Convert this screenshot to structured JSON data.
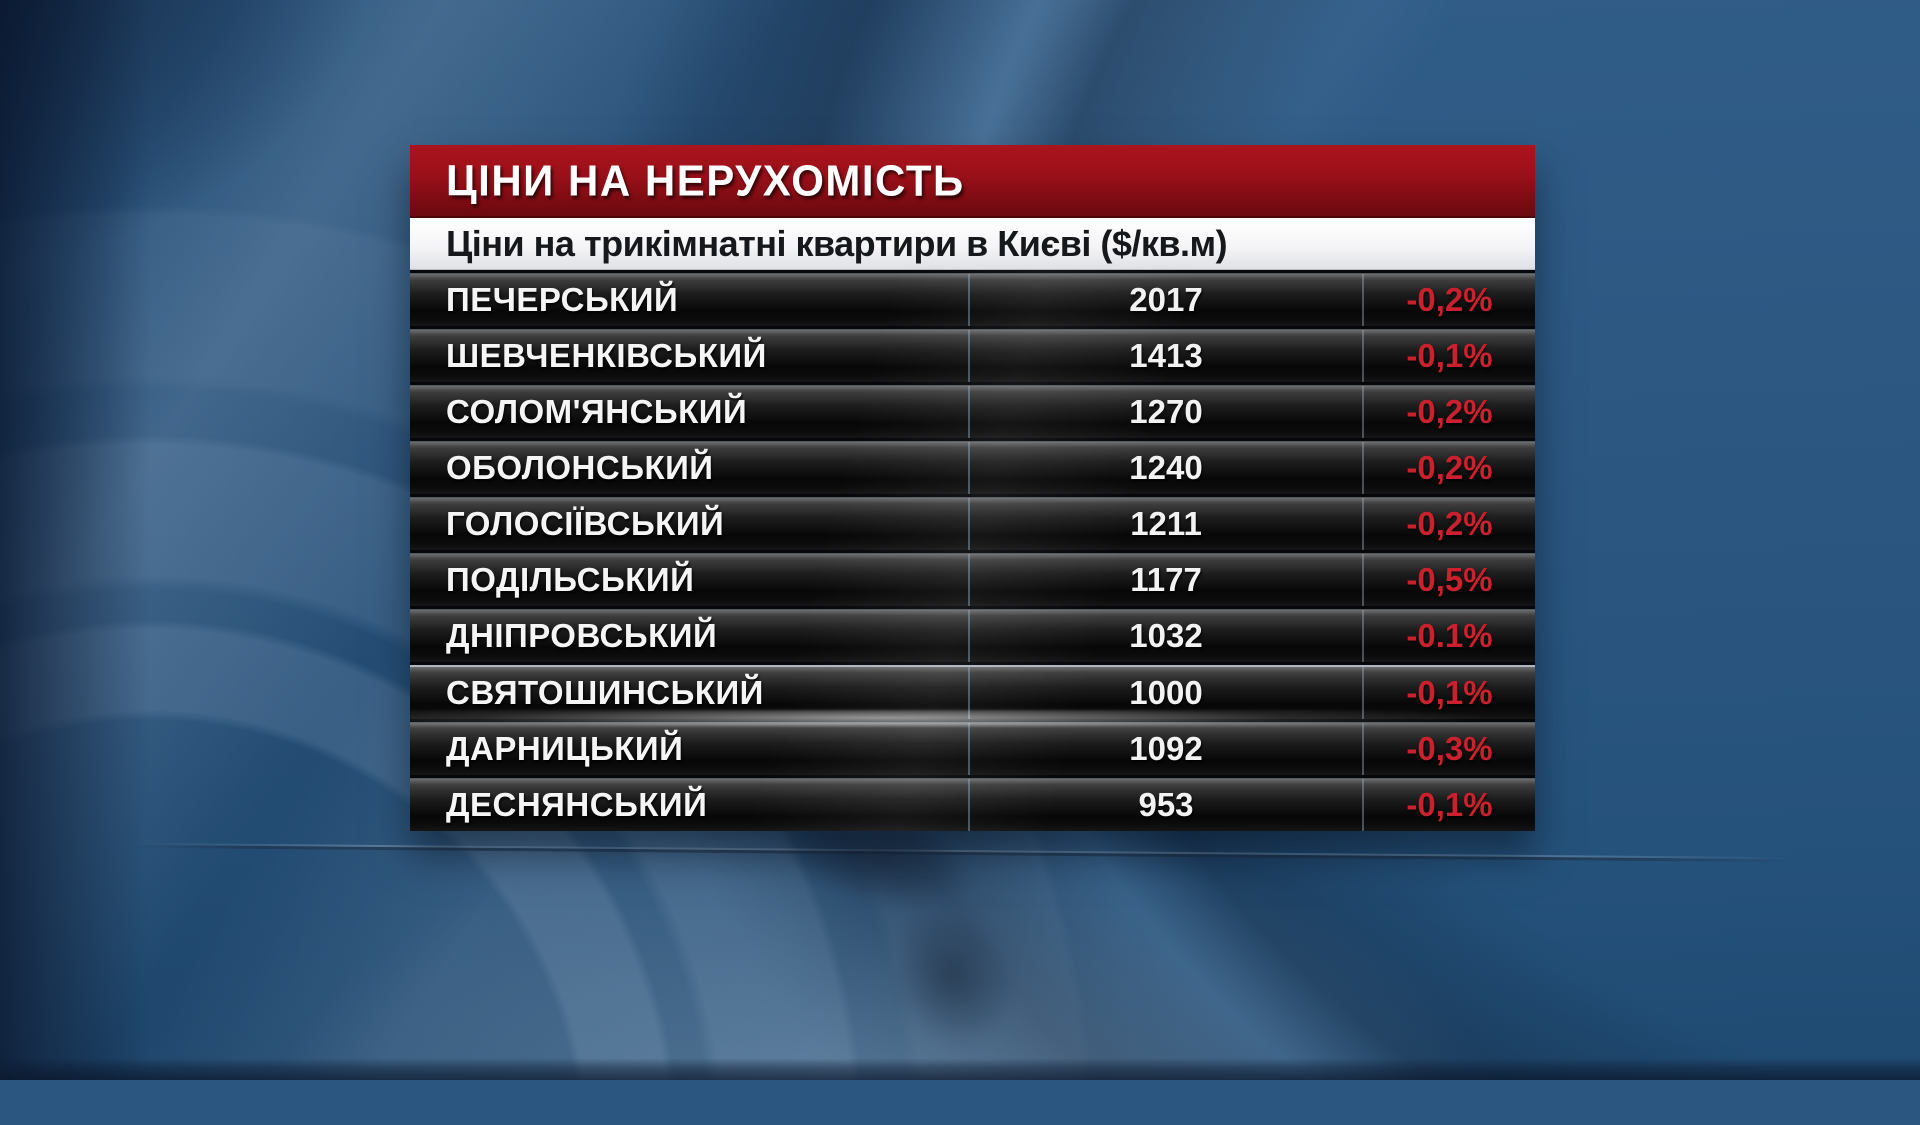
{
  "banner": {
    "title": "ЦІНИ НА НЕРУХОМІСТЬ"
  },
  "subtitle": {
    "text": "Ціни на трикімнатні квартири в Києві ($/кв.м)"
  },
  "colors": {
    "banner_red_top": "#ab141d",
    "banner_red_bottom": "#6b0910",
    "percent_red": "#c9212d",
    "backdrop_blue": "#2c5781",
    "row_dark": "#0b0b0b"
  },
  "chart_data": {
    "type": "table",
    "title": "ЦІНИ НА НЕРУХОМІСТЬ",
    "subtitle": "Ціни на трикімнатні квартири в Києві ($/кв.м)",
    "unit": "$/кв.м",
    "rows": [
      {
        "district": "ПЕЧЕРСЬКИЙ",
        "price": "2017",
        "change": "-0,2%"
      },
      {
        "district": "ШЕВЧЕНКІВСЬКИЙ",
        "price": "1413",
        "change": "-0,1%"
      },
      {
        "district": "СОЛОМ'ЯНСЬКИЙ",
        "price": "1270",
        "change": "-0,2%"
      },
      {
        "district": "ОБОЛОНСЬКИЙ",
        "price": "1240",
        "change": "-0,2%"
      },
      {
        "district": "ГОЛОСІЇВСЬКИЙ",
        "price": "1211",
        "change": "-0,2%"
      },
      {
        "district": "ПОДІЛЬСЬКИЙ",
        "price": "1177",
        "change": "-0,5%"
      },
      {
        "district": "ДНІПРОВСЬКИЙ",
        "price": "1032",
        "change": "-0.1%"
      },
      {
        "district": "СВЯТОШИНСЬКИЙ",
        "price": "1000",
        "change": "-0,1%"
      },
      {
        "district": "ДАРНИЦЬКИЙ",
        "price": "1092",
        "change": "-0,3%"
      },
      {
        "district": "ДЕСНЯНСЬКИЙ",
        "price": "953",
        "change": "-0,1%"
      }
    ]
  }
}
